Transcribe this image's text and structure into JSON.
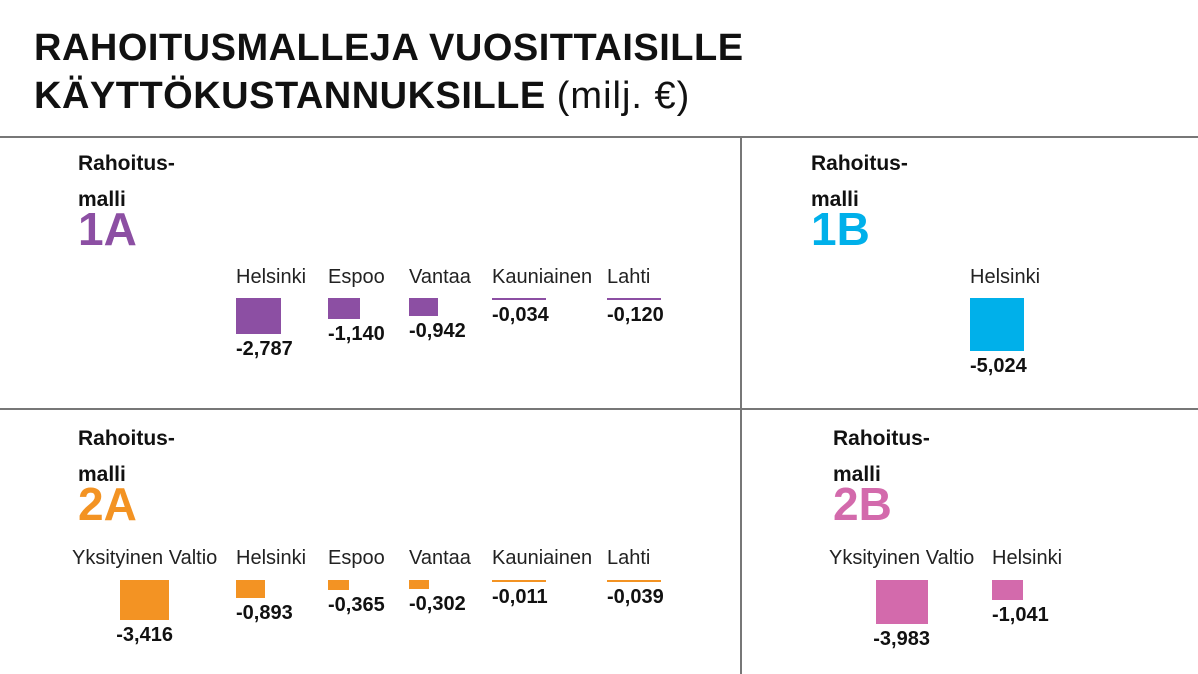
{
  "title": {
    "line1": "RAHOITUSMALLEJA VUOSITTAISILLE",
    "line2": "KÄYTTÖKUSTANNUKSILLE",
    "unit": "(milj. €)"
  },
  "chart_data": [
    {
      "type": "bar",
      "model_label": "Rahoitus-\nmalli",
      "model_code": "1A",
      "color": "#8c4fa3",
      "categories": [
        "Helsinki",
        "Espoo",
        "Vantaa",
        "Kauniainen",
        "Lahti"
      ],
      "values": [
        -2.787,
        -1.14,
        -0.942,
        -0.034,
        -0.12
      ],
      "value_labels": [
        "-2,787",
        "-1,140",
        "-0,942",
        "-0,034",
        "-0,120"
      ]
    },
    {
      "type": "bar",
      "model_label": "Rahoitus-\nmalli",
      "model_code": "1B",
      "color": "#00b0ea",
      "categories": [
        "Helsinki"
      ],
      "values": [
        -5.024
      ],
      "value_labels": [
        "-5,024"
      ]
    },
    {
      "type": "bar",
      "model_label": "Rahoitus-\nmalli",
      "model_code": "2A",
      "color": "#f39323",
      "categories": [
        "Yksityinen Valtio",
        "Helsinki",
        "Espoo",
        "Vantaa",
        "Kauniainen",
        "Lahti"
      ],
      "values": [
        -3.416,
        -0.893,
        -0.365,
        -0.302,
        -0.011,
        -0.039
      ],
      "value_labels": [
        "-3,416",
        "-0,893",
        "-0,365",
        "-0,302",
        "-0,011",
        "-0,039"
      ]
    },
    {
      "type": "bar",
      "model_label": "Rahoitus-\nmalli",
      "model_code": "2B",
      "color": "#d36aac",
      "categories": [
        "Yksityinen Valtio",
        "Helsinki"
      ],
      "values": [
        -3.983,
        -1.041
      ],
      "value_labels": [
        "-3,983",
        "-1,041"
      ]
    }
  ]
}
